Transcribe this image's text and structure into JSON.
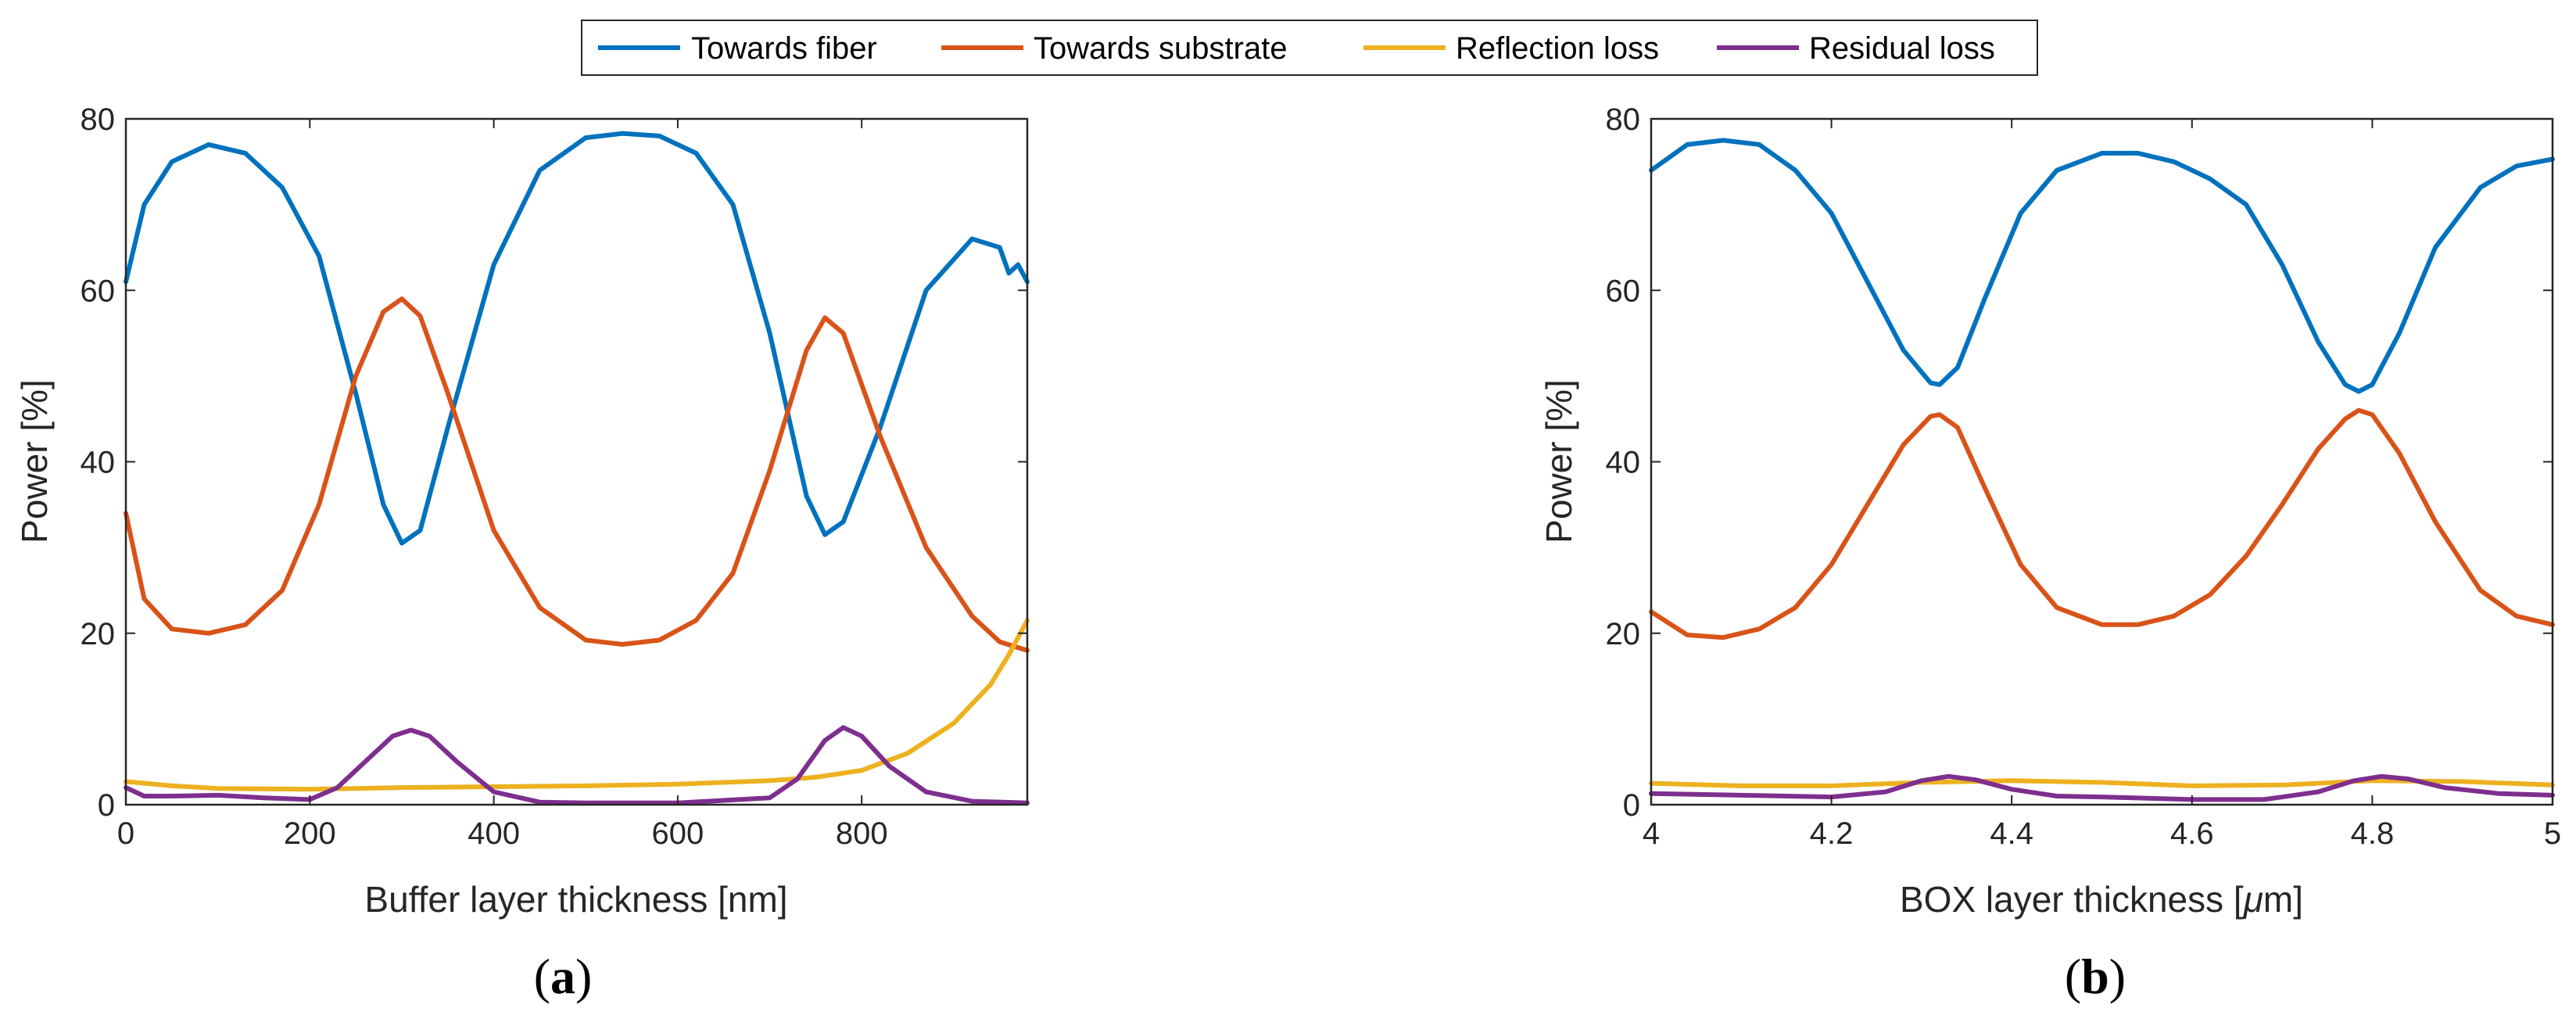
{
  "legend": {
    "entries": [
      {
        "name": "Towards fiber",
        "color": "#0072BD"
      },
      {
        "name": "Towards substrate",
        "color": "#D95319"
      },
      {
        "name": "Reflection loss",
        "color": "#EDB120"
      },
      {
        "name": "Residual loss",
        "color": "#7E2F8E"
      }
    ]
  },
  "panels": {
    "a": {
      "open": "(",
      "letter": "a",
      "close": ")"
    },
    "b": {
      "open": "(",
      "letter": "b",
      "close": ")"
    }
  },
  "chart_data": [
    {
      "type": "line",
      "id": "a",
      "xlabel": "Buffer layer thickness [nm]",
      "ylabel": "Power [%]",
      "xlim": [
        0,
        980
      ],
      "ylim": [
        0,
        80
      ],
      "xticks": [
        0,
        200,
        400,
        600,
        800
      ],
      "yticks": [
        0,
        20,
        40,
        60,
        80
      ],
      "xtick_labels": [
        "0",
        "200",
        "400",
        "600",
        "800"
      ],
      "ytick_labels": [
        "0",
        "20",
        "40",
        "60",
        "80"
      ],
      "series": [
        {
          "name": "Towards fiber",
          "color": "#0072BD",
          "x": [
            0,
            20,
            50,
            90,
            130,
            170,
            210,
            250,
            280,
            300,
            320,
            350,
            400,
            450,
            500,
            540,
            580,
            620,
            660,
            700,
            740,
            760,
            780,
            820,
            870,
            920,
            950,
            960,
            970,
            980
          ],
          "y": [
            61,
            70,
            75,
            77,
            76,
            72,
            64,
            48,
            35,
            30.5,
            32,
            44,
            63,
            74,
            77.8,
            78.3,
            78,
            76,
            70,
            55,
            36,
            31.5,
            33,
            44,
            60,
            66,
            65,
            62,
            63,
            61
          ]
        },
        {
          "name": "Towards substrate",
          "color": "#D95319",
          "x": [
            0,
            20,
            50,
            90,
            130,
            170,
            210,
            250,
            280,
            300,
            320,
            350,
            400,
            450,
            500,
            540,
            580,
            620,
            660,
            700,
            740,
            760,
            780,
            820,
            870,
            920,
            950,
            980
          ],
          "y": [
            34,
            24,
            20.5,
            20,
            21,
            25,
            35,
            50,
            57.5,
            59,
            57,
            48,
            32,
            23,
            19.2,
            18.7,
            19.2,
            21.5,
            27,
            39,
            53,
            56.8,
            55,
            43,
            30,
            22,
            19,
            18
          ]
        },
        {
          "name": "Reflection loss",
          "color": "#EDB120",
          "x": [
            0,
            50,
            100,
            200,
            300,
            400,
            500,
            600,
            700,
            750,
            800,
            850,
            900,
            940,
            960,
            970,
            980
          ],
          "y": [
            2.7,
            2.2,
            1.9,
            1.8,
            2.0,
            2.1,
            2.2,
            2.4,
            2.8,
            3.2,
            4.0,
            6.0,
            9.5,
            14,
            17.5,
            19.5,
            21.5
          ]
        },
        {
          "name": "Residual loss",
          "color": "#7E2F8E",
          "x": [
            0,
            20,
            50,
            100,
            150,
            200,
            230,
            260,
            290,
            310,
            330,
            360,
            400,
            450,
            500,
            600,
            700,
            730,
            760,
            780,
            800,
            830,
            870,
            920,
            980
          ],
          "y": [
            2.0,
            1.0,
            1.0,
            1.1,
            0.8,
            0.6,
            2.0,
            5.0,
            8.0,
            8.7,
            8.0,
            5.0,
            1.5,
            0.3,
            0.2,
            0.2,
            0.8,
            3.0,
            7.5,
            9.0,
            8.0,
            4.5,
            1.5,
            0.4,
            0.2
          ]
        }
      ]
    },
    {
      "type": "line",
      "id": "b",
      "xlabel": "BOX layer thickness [",
      "xlabel_unit_greek": "μ",
      "xlabel_unit_rest": "m]",
      "ylabel": "Power [%]",
      "xlim": [
        4,
        5
      ],
      "ylim": [
        0,
        80
      ],
      "xticks": [
        4,
        4.2,
        4.4,
        4.6,
        4.8,
        5
      ],
      "yticks": [
        0,
        20,
        40,
        60,
        80
      ],
      "xtick_labels": [
        "4",
        "4.2",
        "4.4",
        "4.6",
        "4.8",
        "5"
      ],
      "ytick_labels": [
        "0",
        "20",
        "40",
        "60",
        "80"
      ],
      "series": [
        {
          "name": "Towards fiber",
          "color": "#0072BD",
          "x": [
            4.0,
            4.04,
            4.08,
            4.12,
            4.16,
            4.2,
            4.24,
            4.28,
            4.31,
            4.32,
            4.34,
            4.37,
            4.41,
            4.45,
            4.5,
            4.54,
            4.58,
            4.62,
            4.66,
            4.7,
            4.74,
            4.77,
            4.785,
            4.8,
            4.83,
            4.87,
            4.92,
            4.96,
            5.0
          ],
          "y": [
            74,
            77,
            77.5,
            77,
            74,
            69,
            61,
            53,
            49.2,
            49,
            51,
            59,
            69,
            74,
            76,
            76,
            75,
            73,
            70,
            63,
            54,
            49,
            48.2,
            49,
            55,
            65,
            72,
            74.5,
            75.3
          ]
        },
        {
          "name": "Towards substrate",
          "color": "#D95319",
          "x": [
            4.0,
            4.04,
            4.08,
            4.12,
            4.16,
            4.2,
            4.24,
            4.28,
            4.31,
            4.32,
            4.34,
            4.37,
            4.41,
            4.45,
            4.5,
            4.54,
            4.58,
            4.62,
            4.66,
            4.7,
            4.74,
            4.77,
            4.785,
            4.8,
            4.83,
            4.87,
            4.92,
            4.96,
            5.0
          ],
          "y": [
            22.5,
            19.8,
            19.5,
            20.5,
            23,
            28,
            35,
            42,
            45.3,
            45.5,
            44,
            37,
            28,
            23,
            21,
            21,
            22,
            24.5,
            29,
            35,
            41.5,
            45,
            46,
            45.5,
            41,
            33,
            25,
            22,
            21
          ]
        },
        {
          "name": "Reflection loss",
          "color": "#EDB120",
          "x": [
            4.0,
            4.1,
            4.2,
            4.3,
            4.4,
            4.5,
            4.6,
            4.7,
            4.8,
            4.9,
            5.0
          ],
          "y": [
            2.5,
            2.2,
            2.2,
            2.6,
            2.8,
            2.6,
            2.2,
            2.3,
            2.8,
            2.7,
            2.3
          ]
        },
        {
          "name": "Residual loss",
          "color": "#7E2F8E",
          "x": [
            4.0,
            4.1,
            4.2,
            4.26,
            4.3,
            4.33,
            4.36,
            4.4,
            4.45,
            4.5,
            4.6,
            4.68,
            4.74,
            4.78,
            4.81,
            4.84,
            4.88,
            4.94,
            5.0
          ],
          "y": [
            1.3,
            1.1,
            0.9,
            1.5,
            2.8,
            3.3,
            2.9,
            1.8,
            1.0,
            0.9,
            0.6,
            0.6,
            1.5,
            2.8,
            3.3,
            3.0,
            2.0,
            1.3,
            1.1
          ]
        }
      ]
    }
  ]
}
